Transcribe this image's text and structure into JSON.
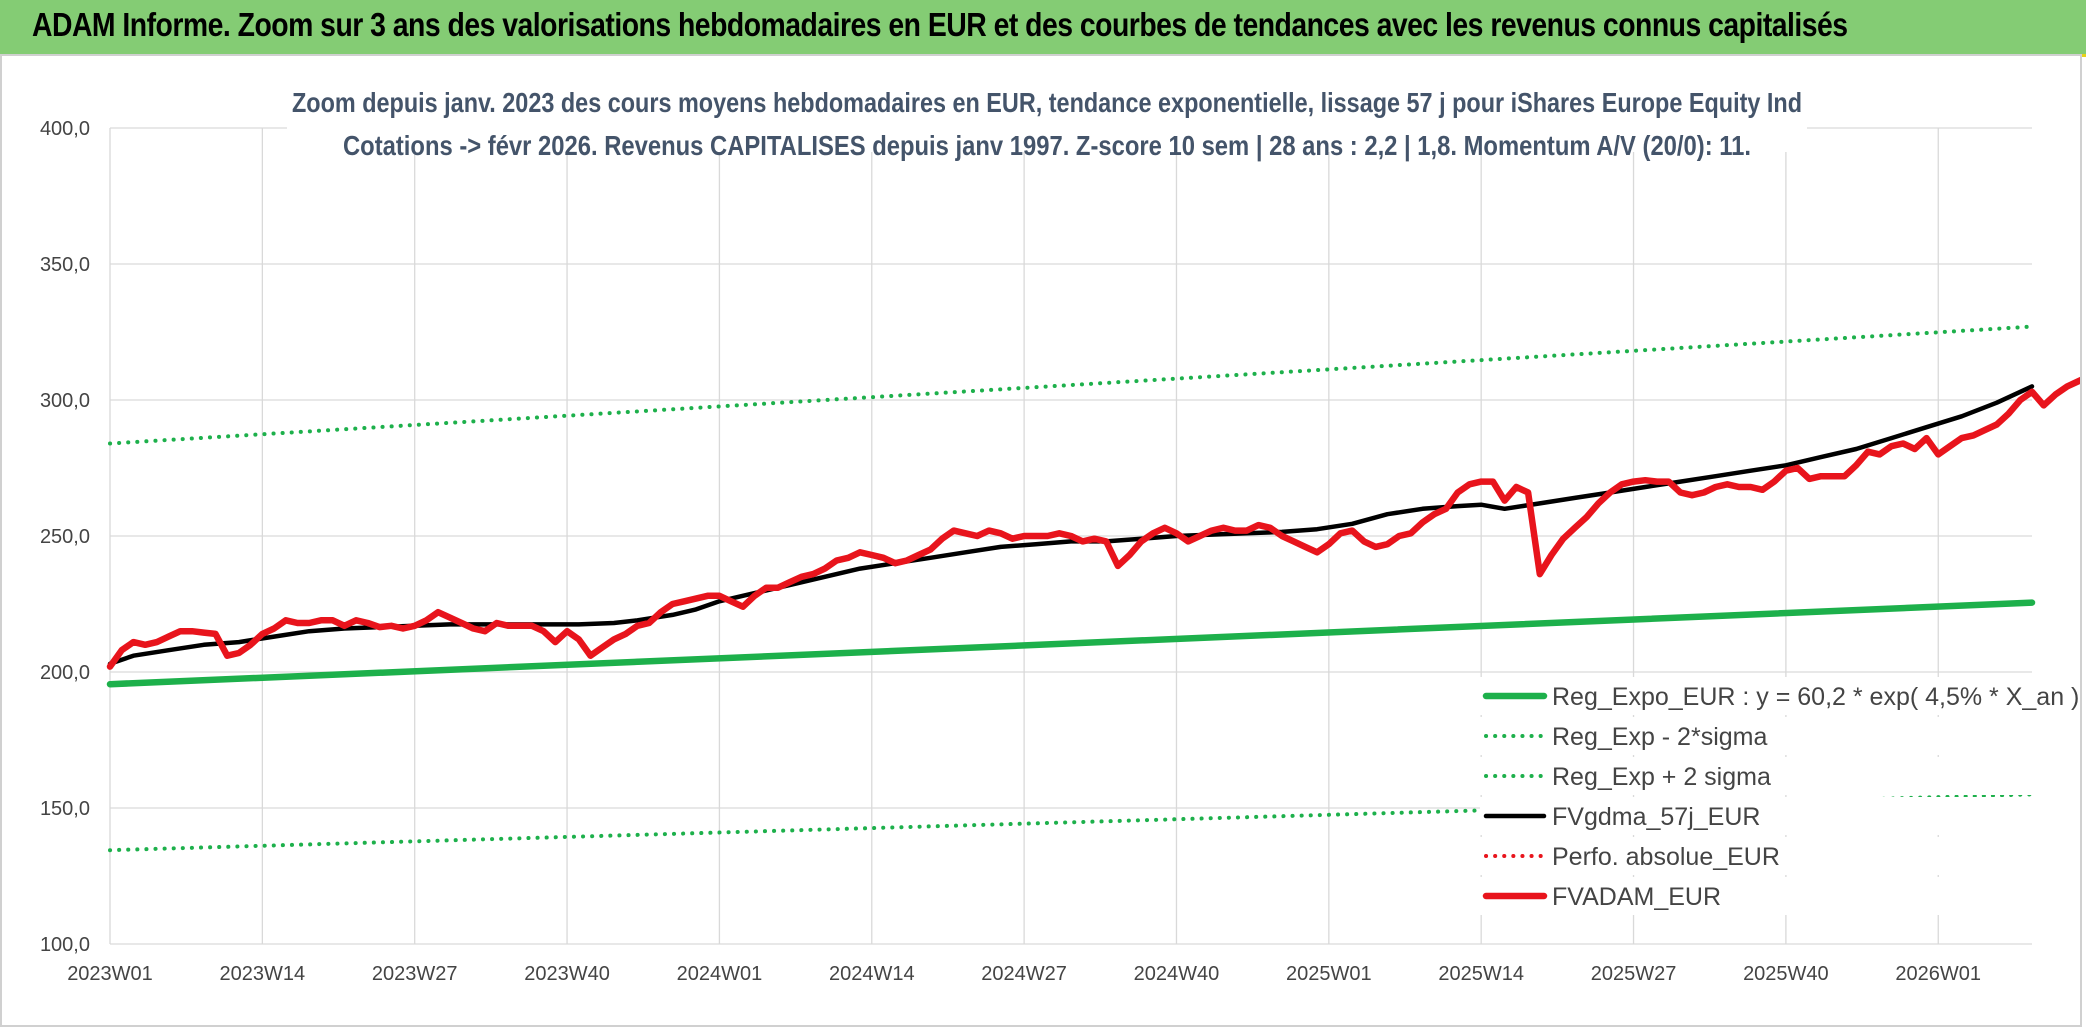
{
  "header": {
    "title": "ADAM Informe. Zoom sur 3 ans des valorisations hebdomadaires en EUR et des courbes de tendances avec les revenus connus capitalisés"
  },
  "chart_data": {
    "type": "line",
    "title": "Zoom depuis janv. 2023 des cours moyens hebdomadaires en EUR, tendance exponentielle, lissage 57 j pour iShares Europe Equity Ind",
    "subtitle": "Cotations -> févr 2026. Revenus CAPITALISES depuis janv 1997. Z-score 10 sem | 28 ans : 2,2 | 1,8. Momentum A/V (20/0): 11.",
    "ylim": [
      100,
      400
    ],
    "yticks": [
      "100,0",
      "150,0",
      "200,0",
      "250,0",
      "300,0",
      "350,0",
      "400,0"
    ],
    "xlim": [
      0,
      164
    ],
    "xticks": [
      {
        "label": "2023W01",
        "index": 0
      },
      {
        "label": "2023W14",
        "index": 13
      },
      {
        "label": "2023W27",
        "index": 26
      },
      {
        "label": "2023W40",
        "index": 39
      },
      {
        "label": "2024W01",
        "index": 52
      },
      {
        "label": "2024W14",
        "index": 65
      },
      {
        "label": "2024W27",
        "index": 78
      },
      {
        "label": "2024W40",
        "index": 91
      },
      {
        "label": "2025W01",
        "index": 104
      },
      {
        "label": "2025W14",
        "index": 117
      },
      {
        "label": "2025W27",
        "index": 130
      },
      {
        "label": "2025W40",
        "index": 143
      },
      {
        "label": "2026W01",
        "index": 156
      }
    ],
    "grid": true,
    "legend_position": "bottom-right",
    "series": [
      {
        "name": "Reg_Expo_EUR : y = 60,2 * exp( 4,5% *  X_an )",
        "color": "#1db04b",
        "style": "solid-thick",
        "points": [
          [
            0,
            195.5
          ],
          [
            164,
            225.5
          ]
        ]
      },
      {
        "name": "Reg_Exp - 2*sigma",
        "color": "#1db04b",
        "style": "dotted",
        "points": [
          [
            0,
            134.5
          ],
          [
            164,
            155.0
          ]
        ]
      },
      {
        "name": "Reg_Exp + 2 sigma",
        "color": "#1db04b",
        "style": "dotted",
        "points": [
          [
            0,
            284.0
          ],
          [
            164,
            327.0
          ]
        ]
      },
      {
        "name": "FVgdma_57j_EUR",
        "color": "#000000",
        "style": "solid",
        "points": [
          [
            0,
            203
          ],
          [
            2,
            206
          ],
          [
            5,
            208
          ],
          [
            8,
            210
          ],
          [
            11,
            211
          ],
          [
            14,
            213
          ],
          [
            17,
            215
          ],
          [
            20,
            216
          ],
          [
            23,
            216.5
          ],
          [
            26,
            217
          ],
          [
            29,
            217.5
          ],
          [
            32,
            217.5
          ],
          [
            36,
            217.5
          ],
          [
            40,
            217.5
          ],
          [
            43,
            218
          ],
          [
            45,
            219
          ],
          [
            48,
            221
          ],
          [
            50,
            223
          ],
          [
            52,
            226
          ],
          [
            55,
            229
          ],
          [
            58,
            232
          ],
          [
            61,
            235
          ],
          [
            64,
            238
          ],
          [
            67,
            240
          ],
          [
            70,
            242
          ],
          [
            73,
            244
          ],
          [
            76,
            246
          ],
          [
            79,
            247
          ],
          [
            82,
            248
          ],
          [
            85,
            248
          ],
          [
            88,
            249
          ],
          [
            91,
            250
          ],
          [
            94,
            250.5
          ],
          [
            97,
            251
          ],
          [
            100,
            251.5
          ],
          [
            103,
            252.5
          ],
          [
            106,
            254.5
          ],
          [
            109,
            258
          ],
          [
            112,
            260
          ],
          [
            115,
            261
          ],
          [
            117,
            261.5
          ],
          [
            119,
            260
          ],
          [
            122,
            262
          ],
          [
            125,
            264
          ],
          [
            128,
            266
          ],
          [
            131,
            268
          ],
          [
            134,
            270
          ],
          [
            137,
            272
          ],
          [
            140,
            274
          ],
          [
            143,
            276
          ],
          [
            146,
            279
          ],
          [
            149,
            282
          ],
          [
            152,
            286
          ],
          [
            155,
            290
          ],
          [
            158,
            294
          ],
          [
            161,
            299
          ],
          [
            164,
            305
          ]
        ]
      },
      {
        "name": "Perfo. absolue_EUR",
        "color": "#e8141c",
        "style": "dotted",
        "points": []
      },
      {
        "name": "FVADAM_EUR",
        "color": "#e8141c",
        "style": "solid-thick",
        "points": [
          [
            0,
            202
          ],
          [
            1,
            208
          ],
          [
            2,
            211
          ],
          [
            3,
            210
          ],
          [
            4,
            211
          ],
          [
            5,
            213
          ],
          [
            6,
            215
          ],
          [
            7,
            215
          ],
          [
            8,
            214.5
          ],
          [
            9,
            214
          ],
          [
            10,
            206
          ],
          [
            11,
            207
          ],
          [
            12,
            210
          ],
          [
            13,
            214
          ],
          [
            14,
            216
          ],
          [
            15,
            219
          ],
          [
            16,
            218
          ],
          [
            17,
            218
          ],
          [
            18,
            219
          ],
          [
            19,
            219
          ],
          [
            20,
            217
          ],
          [
            21,
            219
          ],
          [
            22,
            218
          ],
          [
            23,
            216.5
          ],
          [
            24,
            217
          ],
          [
            25,
            216
          ],
          [
            26,
            217
          ],
          [
            27,
            219
          ],
          [
            28,
            222
          ],
          [
            29,
            220
          ],
          [
            30,
            218
          ],
          [
            31,
            216
          ],
          [
            32,
            215
          ],
          [
            33,
            218
          ],
          [
            34,
            217
          ],
          [
            35,
            217
          ],
          [
            36,
            217
          ],
          [
            37,
            215
          ],
          [
            38,
            211
          ],
          [
            39,
            215
          ],
          [
            40,
            212
          ],
          [
            41,
            206
          ],
          [
            42,
            209
          ],
          [
            43,
            212
          ],
          [
            44,
            214
          ],
          [
            45,
            217
          ],
          [
            46,
            218
          ],
          [
            47,
            222
          ],
          [
            48,
            225
          ],
          [
            49,
            226
          ],
          [
            50,
            227
          ],
          [
            51,
            228
          ],
          [
            52,
            228
          ],
          [
            53,
            226
          ],
          [
            54,
            224
          ],
          [
            55,
            228
          ],
          [
            56,
            231
          ],
          [
            57,
            231
          ],
          [
            58,
            233
          ],
          [
            59,
            235
          ],
          [
            60,
            236
          ],
          [
            61,
            238
          ],
          [
            62,
            241
          ],
          [
            63,
            242
          ],
          [
            64,
            244
          ],
          [
            65,
            243
          ],
          [
            66,
            242
          ],
          [
            67,
            240
          ],
          [
            68,
            241
          ],
          [
            69,
            243
          ],
          [
            70,
            245
          ],
          [
            71,
            249
          ],
          [
            72,
            252
          ],
          [
            73,
            251
          ],
          [
            74,
            250
          ],
          [
            75,
            252
          ],
          [
            76,
            251
          ],
          [
            77,
            249
          ],
          [
            78,
            250
          ],
          [
            79,
            250
          ],
          [
            80,
            250
          ],
          [
            81,
            251
          ],
          [
            82,
            250
          ],
          [
            83,
            248
          ],
          [
            84,
            249
          ],
          [
            85,
            248
          ],
          [
            86,
            239
          ],
          [
            87,
            243
          ],
          [
            88,
            248
          ],
          [
            89,
            251
          ],
          [
            90,
            253
          ],
          [
            91,
            251
          ],
          [
            92,
            248
          ],
          [
            93,
            250
          ],
          [
            94,
            252
          ],
          [
            95,
            253
          ],
          [
            96,
            252
          ],
          [
            97,
            252
          ],
          [
            98,
            254
          ],
          [
            99,
            253
          ],
          [
            100,
            250
          ],
          [
            101,
            248
          ],
          [
            102,
            246
          ],
          [
            103,
            244
          ],
          [
            104,
            247
          ],
          [
            105,
            251
          ],
          [
            106,
            252
          ],
          [
            107,
            248
          ],
          [
            108,
            246
          ],
          [
            109,
            247
          ],
          [
            110,
            250
          ],
          [
            111,
            251
          ],
          [
            112,
            255
          ],
          [
            113,
            258
          ],
          [
            114,
            260
          ],
          [
            115,
            266
          ],
          [
            116,
            269
          ],
          [
            117,
            270
          ],
          [
            118,
            270
          ],
          [
            119,
            263
          ],
          [
            120,
            268
          ],
          [
            121,
            266
          ],
          [
            122,
            236
          ],
          [
            123,
            243
          ],
          [
            124,
            249
          ],
          [
            125,
            253
          ],
          [
            126,
            257
          ],
          [
            127,
            262
          ],
          [
            128,
            266
          ],
          [
            129,
            269
          ],
          [
            130,
            270
          ],
          [
            131,
            270.5
          ],
          [
            132,
            270
          ],
          [
            133,
            270
          ],
          [
            134,
            266
          ],
          [
            135,
            265
          ],
          [
            136,
            266
          ],
          [
            137,
            268
          ],
          [
            138,
            269
          ],
          [
            139,
            268
          ],
          [
            140,
            268
          ],
          [
            141,
            267
          ],
          [
            142,
            270
          ],
          [
            143,
            274
          ],
          [
            144,
            275
          ],
          [
            145,
            271
          ],
          [
            146,
            272
          ],
          [
            147,
            272
          ],
          [
            148,
            272
          ],
          [
            149,
            276
          ],
          [
            150,
            281
          ],
          [
            151,
            280
          ],
          [
            152,
            283
          ],
          [
            153,
            284
          ],
          [
            154,
            282
          ],
          [
            155,
            286
          ],
          [
            156,
            280
          ],
          [
            157,
            283
          ],
          [
            158,
            286
          ],
          [
            159,
            287
          ],
          [
            160,
            289
          ],
          [
            161,
            291
          ],
          [
            162,
            295
          ],
          [
            163,
            300
          ],
          [
            164,
            303
          ],
          [
            165,
            298
          ],
          [
            166,
            302
          ],
          [
            167,
            305
          ],
          [
            168,
            307
          ],
          [
            169,
            309
          ],
          [
            170,
            313
          ]
        ]
      }
    ]
  }
}
